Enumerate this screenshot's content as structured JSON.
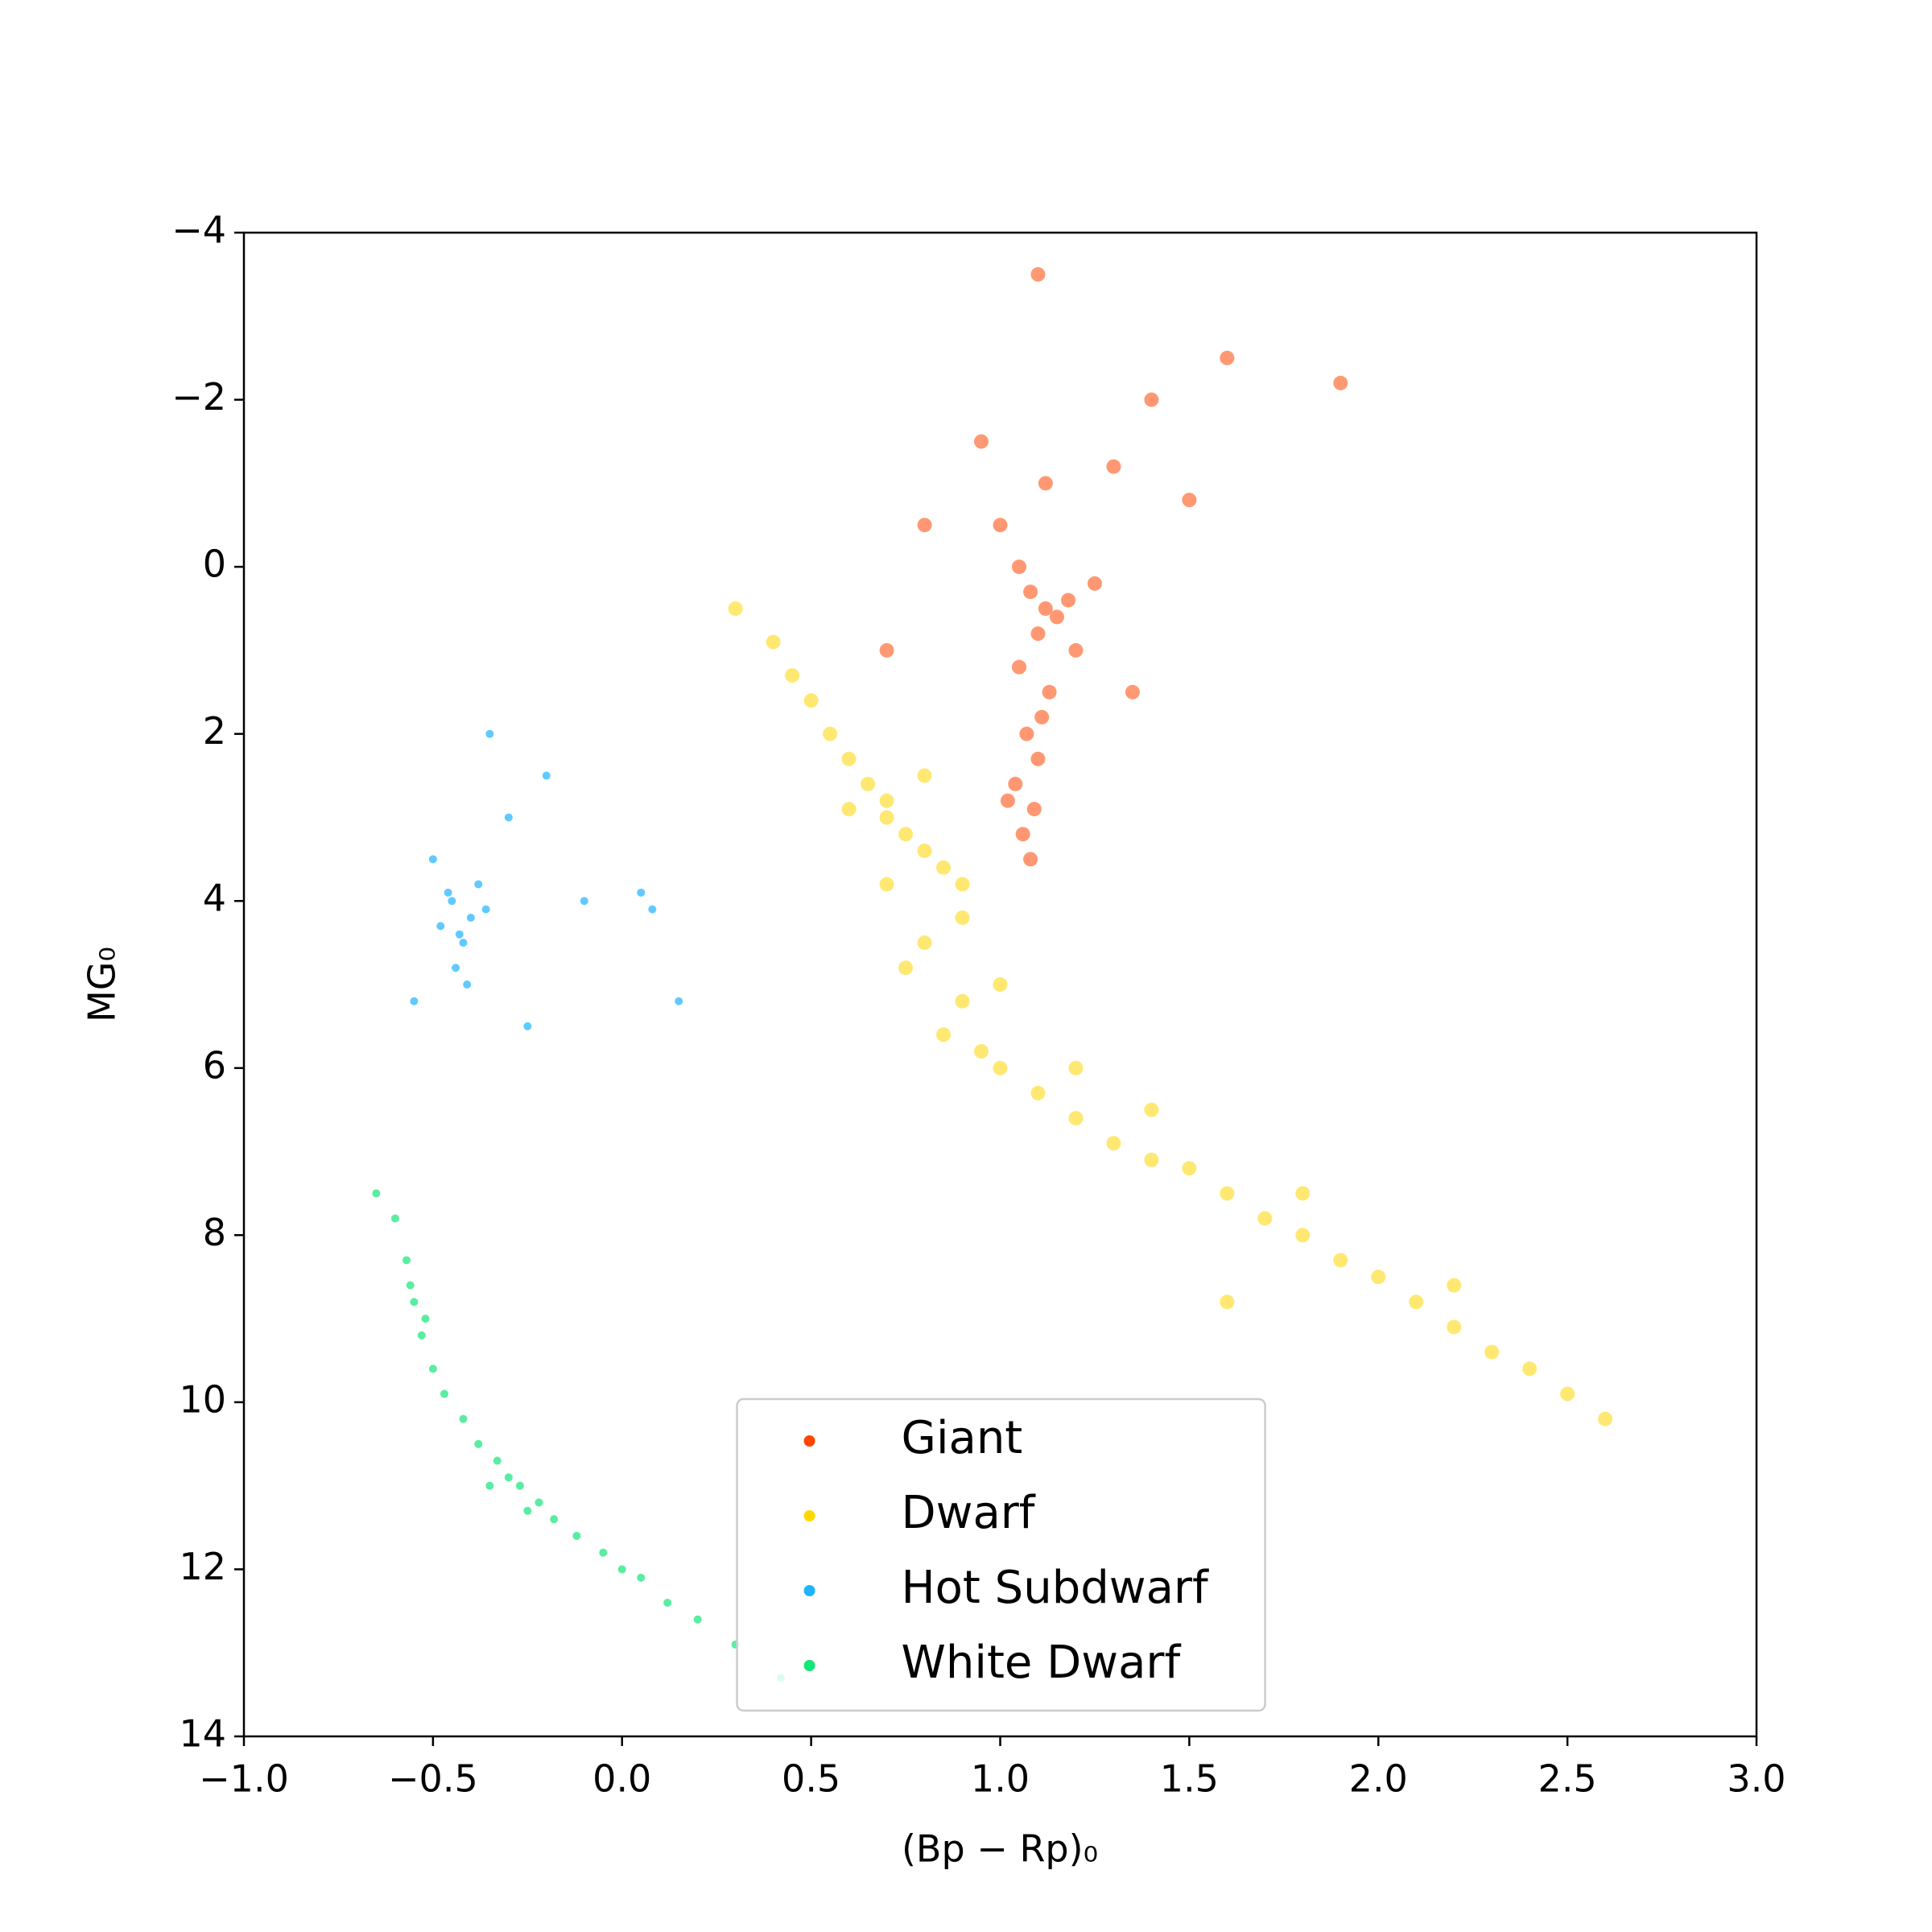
{
  "chart_data": {
    "type": "scatter",
    "xlabel": "(Bp − Rp)₀",
    "ylabel": "MG₀",
    "xlim": [
      -1.0,
      3.0
    ],
    "xticks": [
      {
        "value": -1.0,
        "label": "−1.0"
      },
      {
        "value": -0.5,
        "label": "−0.5"
      },
      {
        "value": 0.0,
        "label": "0.0"
      },
      {
        "value": 0.5,
        "label": "0.5"
      },
      {
        "value": 1.0,
        "label": "1.0"
      },
      {
        "value": 1.5,
        "label": "1.5"
      },
      {
        "value": 2.0,
        "label": "2.0"
      },
      {
        "value": 2.5,
        "label": "2.5"
      },
      {
        "value": 3.0,
        "label": "3.0"
      }
    ],
    "ylim": [
      -4,
      14
    ],
    "y_inverted": true,
    "yticks": [
      {
        "value": -4,
        "label": "−4"
      },
      {
        "value": -2,
        "label": "−2"
      },
      0,
      2,
      4,
      6,
      8,
      10,
      12,
      14
    ],
    "legend": "lower center",
    "grid": false,
    "series": [
      {
        "name": "Giant",
        "color": "#ff4500",
        "x": [
          1.08,
          1.12,
          1.15,
          1.1,
          1.18,
          1.05,
          1.13,
          1.2,
          1.07,
          1.1,
          1.04,
          1.09,
          1.06,
          1.08,
          1.11,
          1.02,
          1.05,
          1.0,
          1.12,
          0.95,
          1.3,
          1.4,
          1.6,
          1.25,
          0.8,
          0.7,
          1.5,
          1.9,
          1.1,
          1.35
        ],
        "values": [
          0.3,
          0.5,
          0.6,
          0.8,
          0.4,
          1.2,
          1.5,
          1.0,
          2.0,
          2.3,
          2.6,
          2.9,
          3.2,
          3.5,
          1.8,
          2.8,
          0.0,
          -0.5,
          -1.0,
          -1.5,
          -1.2,
          -2.0,
          -2.5,
          0.2,
          -0.5,
          1.0,
          -0.8,
          -2.2,
          -3.5,
          1.5
        ]
      },
      {
        "name": "Dwarf",
        "color": "#ffd700",
        "x": [
          0.3,
          0.4,
          0.45,
          0.5,
          0.55,
          0.6,
          0.65,
          0.7,
          0.75,
          0.8,
          0.85,
          0.9,
          0.6,
          0.7,
          0.8,
          0.9,
          0.75,
          0.85,
          0.95,
          1.0,
          1.1,
          1.2,
          1.3,
          1.4,
          1.5,
          1.6,
          1.7,
          1.8,
          1.9,
          2.0,
          2.1,
          2.2,
          2.3,
          2.4,
          2.5,
          2.6,
          0.9,
          1.0,
          1.2,
          1.4,
          1.8,
          2.2,
          0.8,
          0.7,
          1.6
        ],
        "values": [
          0.5,
          0.9,
          1.3,
          1.6,
          2.0,
          2.3,
          2.6,
          2.8,
          3.2,
          3.4,
          3.6,
          3.8,
          2.9,
          3.8,
          4.5,
          5.2,
          4.8,
          5.6,
          5.8,
          6.0,
          6.3,
          6.6,
          6.9,
          7.1,
          7.2,
          7.5,
          7.8,
          8.0,
          8.3,
          8.5,
          8.8,
          9.1,
          9.4,
          9.6,
          9.9,
          10.2,
          4.2,
          5.0,
          6.0,
          6.5,
          7.5,
          8.6,
          2.5,
          3.0,
          8.8
        ]
      },
      {
        "name": "Hot Subdwarf",
        "color": "#1eb4ff",
        "x": [
          -0.45,
          -0.4,
          -0.42,
          -0.38,
          -0.48,
          -0.44,
          -0.36,
          -0.5,
          -0.41,
          -0.46,
          -0.3,
          -0.2,
          -0.1,
          0.05,
          0.08,
          -0.55,
          -0.35,
          -0.25,
          0.15,
          -0.43
        ],
        "values": [
          4.0,
          4.2,
          4.5,
          3.8,
          4.3,
          4.8,
          4.1,
          3.5,
          5.0,
          3.9,
          3.0,
          2.5,
          4.0,
          3.9,
          4.1,
          5.2,
          2.0,
          5.5,
          5.2,
          4.4
        ]
      },
      {
        "name": "White Dwarf",
        "color": "#14e67a",
        "x": [
          -0.65,
          -0.6,
          -0.57,
          -0.55,
          -0.53,
          -0.5,
          -0.47,
          -0.42,
          -0.38,
          -0.33,
          -0.3,
          -0.27,
          -0.22,
          -0.18,
          -0.12,
          -0.05,
          0.0,
          0.05,
          0.12,
          0.2,
          0.3,
          0.42,
          -0.56,
          -0.52,
          -0.35,
          -0.25
        ],
        "values": [
          7.5,
          7.8,
          8.3,
          8.8,
          9.2,
          9.6,
          9.9,
          10.2,
          10.5,
          10.7,
          10.9,
          11.0,
          11.2,
          11.4,
          11.6,
          11.8,
          12.0,
          12.1,
          12.4,
          12.6,
          12.9,
          13.3,
          8.6,
          9.0,
          11.0,
          11.3
        ]
      }
    ]
  }
}
